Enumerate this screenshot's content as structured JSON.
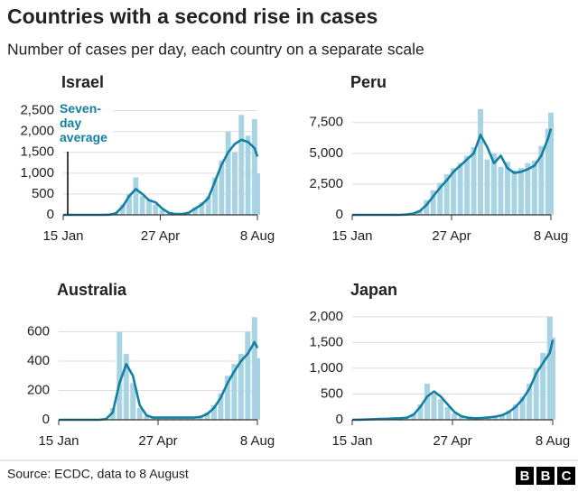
{
  "header": {
    "title": "Countries with a second rise in cases",
    "subtitle": "Number of cases per day, each country on a separate scale"
  },
  "chart_data": [
    {
      "type": "combo",
      "title": "Israel",
      "xlim": [
        0,
        206
      ],
      "xticks": [
        {
          "value": 0,
          "label": "15 Jan"
        },
        {
          "value": 103,
          "label": "27 Apr"
        },
        {
          "value": 206,
          "label": "8 Aug"
        }
      ],
      "ylim": [
        0,
        2600
      ],
      "yticks": [
        0,
        500,
        {
          "value": 1000,
          "label": "1,000"
        },
        {
          "value": 1500,
          "label": "1,500"
        },
        {
          "value": 2000,
          "label": "2,000"
        },
        {
          "value": 2500,
          "label": "2,500"
        }
      ],
      "grid": true,
      "x": [
        0,
        7,
        14,
        21,
        28,
        35,
        42,
        49,
        56,
        63,
        70,
        77,
        84,
        91,
        98,
        105,
        112,
        119,
        126,
        133,
        140,
        147,
        154,
        161,
        168,
        175,
        182,
        189,
        196,
        203,
        206
      ],
      "series": [
        {
          "type": "bar",
          "color": "#a8d3e3",
          "values": [
            0,
            0,
            0,
            0,
            0,
            0,
            0,
            10,
            60,
            250,
            500,
            900,
            450,
            380,
            250,
            120,
            40,
            15,
            25,
            60,
            180,
            300,
            450,
            900,
            1300,
            2000,
            1500,
            2400,
            1900,
            2300,
            1000
          ]
        },
        {
          "type": "line",
          "name": "Seven-day average",
          "color": "#1380a1",
          "values": [
            0,
            0,
            0,
            0,
            0,
            0,
            0,
            5,
            40,
            200,
            450,
            620,
            500,
            350,
            300,
            150,
            50,
            20,
            20,
            50,
            150,
            250,
            400,
            800,
            1200,
            1500,
            1700,
            1800,
            1750,
            1600,
            1400
          ]
        }
      ]
    },
    {
      "type": "combo",
      "title": "Peru",
      "xlim": [
        0,
        206
      ],
      "xticks": [
        {
          "value": 0,
          "label": "15 Jan"
        },
        {
          "value": 103,
          "label": "27 Apr"
        },
        {
          "value": 206,
          "label": "8 Aug"
        }
      ],
      "ylim": [
        0,
        8800
      ],
      "yticks": [
        0,
        {
          "value": 2500,
          "label": "2,500"
        },
        {
          "value": 5000,
          "label": "5,000"
        },
        {
          "value": 7500,
          "label": "7,500"
        }
      ],
      "grid": true,
      "x": [
        0,
        7,
        14,
        21,
        28,
        35,
        42,
        49,
        56,
        63,
        70,
        77,
        84,
        91,
        98,
        105,
        112,
        119,
        126,
        133,
        140,
        147,
        154,
        161,
        168,
        175,
        182,
        189,
        196,
        203,
        206
      ],
      "series": [
        {
          "type": "bar",
          "color": "#a8d3e3",
          "values": [
            0,
            0,
            0,
            0,
            0,
            0,
            0,
            0,
            30,
            150,
            400,
            1200,
            2000,
            2600,
            3300,
            3800,
            4200,
            4800,
            5500,
            8600,
            4500,
            5000,
            3900,
            4300,
            3600,
            3800,
            4200,
            4400,
            5600,
            7000,
            8300
          ]
        },
        {
          "type": "line",
          "color": "#1380a1",
          "values": [
            0,
            0,
            0,
            0,
            0,
            0,
            0,
            0,
            20,
            100,
            300,
            800,
            1500,
            2200,
            2800,
            3500,
            4000,
            4500,
            5000,
            6500,
            5500,
            4200,
            4800,
            3800,
            3400,
            3500,
            3700,
            4000,
            4800,
            6200,
            7000
          ]
        }
      ]
    },
    {
      "type": "combo",
      "title": "Australia",
      "xlim": [
        0,
        206
      ],
      "xticks": [
        {
          "value": 0,
          "label": "15 Jan"
        },
        {
          "value": 103,
          "label": "27 Apr"
        },
        {
          "value": 206,
          "label": "8 Aug"
        }
      ],
      "ylim": [
        0,
        720
      ],
      "yticks": [
        0,
        200,
        400,
        600
      ],
      "grid": true,
      "x": [
        0,
        7,
        14,
        21,
        28,
        35,
        42,
        49,
        56,
        63,
        70,
        77,
        84,
        91,
        98,
        105,
        112,
        119,
        126,
        133,
        140,
        147,
        154,
        161,
        168,
        175,
        182,
        189,
        196,
        203,
        206
      ],
      "series": [
        {
          "type": "bar",
          "color": "#a8d3e3",
          "values": [
            0,
            0,
            0,
            0,
            0,
            0,
            2,
            8,
            80,
            600,
            450,
            250,
            80,
            25,
            15,
            20,
            10,
            15,
            10,
            15,
            20,
            25,
            50,
            100,
            180,
            300,
            380,
            450,
            600,
            700,
            420
          ]
        },
        {
          "type": "line",
          "color": "#1380a1",
          "values": [
            0,
            0,
            0,
            0,
            0,
            0,
            0,
            5,
            50,
            250,
            380,
            300,
            100,
            30,
            15,
            15,
            15,
            15,
            15,
            15,
            15,
            20,
            40,
            80,
            150,
            250,
            330,
            400,
            450,
            530,
            490
          ]
        }
      ]
    },
    {
      "type": "combo",
      "title": "Japan",
      "xlim": [
        0,
        206
      ],
      "xticks": [
        {
          "value": 0,
          "label": "15 Jan"
        },
        {
          "value": 103,
          "label": "27 Apr"
        },
        {
          "value": 206,
          "label": "8 Aug"
        }
      ],
      "ylim": [
        0,
        2050
      ],
      "yticks": [
        0,
        500,
        {
          "value": 1000,
          "label": "1,000"
        },
        {
          "value": 1500,
          "label": "1,500"
        },
        {
          "value": 2000,
          "label": "2,000"
        }
      ],
      "grid": true,
      "x": [
        0,
        7,
        14,
        21,
        28,
        35,
        42,
        49,
        56,
        63,
        70,
        77,
        84,
        91,
        98,
        105,
        112,
        119,
        126,
        133,
        140,
        147,
        154,
        161,
        168,
        175,
        182,
        189,
        196,
        203,
        206
      ],
      "series": [
        {
          "type": "bar",
          "color": "#a8d3e3",
          "values": [
            0,
            2,
            5,
            10,
            15,
            20,
            25,
            35,
            45,
            120,
            300,
            700,
            500,
            400,
            250,
            120,
            60,
            35,
            25,
            40,
            50,
            70,
            100,
            180,
            300,
            450,
            700,
            1000,
            1300,
            2000,
            1600
          ]
        },
        {
          "type": "line",
          "color": "#1380a1",
          "values": [
            0,
            2,
            5,
            10,
            15,
            20,
            25,
            30,
            40,
            100,
            250,
            450,
            550,
            450,
            300,
            150,
            70,
            40,
            30,
            35,
            45,
            60,
            90,
            150,
            250,
            400,
            600,
            900,
            1100,
            1300,
            1550
          ]
        }
      ]
    }
  ],
  "footer": {
    "source": "Source: ECDC, data to 8 August",
    "logo": [
      "B",
      "B",
      "C"
    ]
  }
}
